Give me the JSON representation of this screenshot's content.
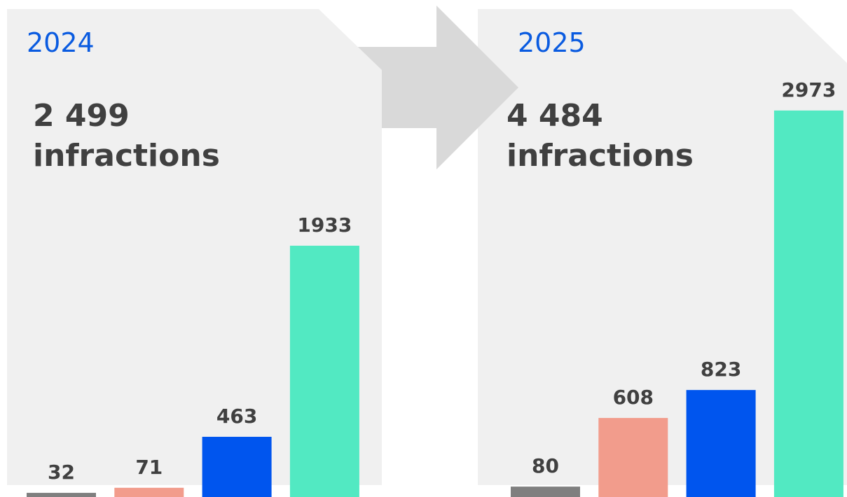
{
  "chart_data": [
    {
      "type": "bar",
      "title": "2024",
      "subtitle": [
        "2 499",
        "infractions"
      ],
      "categories": [
        null,
        null,
        null,
        null
      ],
      "values": [
        32,
        71,
        463,
        1933
      ],
      "colors": [
        "#7f7f7f",
        "#f29c8c",
        "#0055ee",
        "#52e9c2"
      ],
      "ylim": [
        0,
        3823
      ]
    },
    {
      "type": "bar",
      "title": "2025",
      "subtitle": [
        "4 484",
        "infractions"
      ],
      "categories": [
        null,
        null,
        null,
        null
      ],
      "values": [
        80,
        608,
        823,
        2973
      ],
      "colors": [
        "#7f7f7f",
        "#f29c8c",
        "#0055ee",
        "#52e9c2"
      ],
      "ylim": [
        0,
        3823
      ]
    }
  ]
}
